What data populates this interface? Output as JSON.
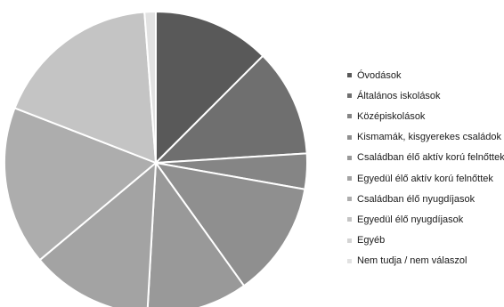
{
  "chart_data": {
    "type": "pie",
    "legend_position": "right",
    "slice_border_color": "#ffffff",
    "categories": [
      "Óvodások",
      "Általános iskolások",
      "Középiskolások",
      "Kismamák, kisgyerekes családok",
      "Családban élő aktív korú felnőttek",
      "Egyedül élő aktív korú felnőttek",
      "Családban élő nyugdíjasok",
      "Egyedül élő nyugdíjasok",
      "Egyéb",
      "Nem tudja / nem válaszol"
    ],
    "values": [
      12.5,
      11.5,
      3.8,
      12.3,
      10.8,
      13.0,
      17.0,
      17.9,
      0.0,
      1.2
    ],
    "colors": [
      "#595959",
      "#6f6f6f",
      "#858585",
      "#8f8f8f",
      "#999999",
      "#a3a3a3",
      "#adadad",
      "#c4c4c4",
      "#d4d4d4",
      "#e2e2e2"
    ]
  }
}
